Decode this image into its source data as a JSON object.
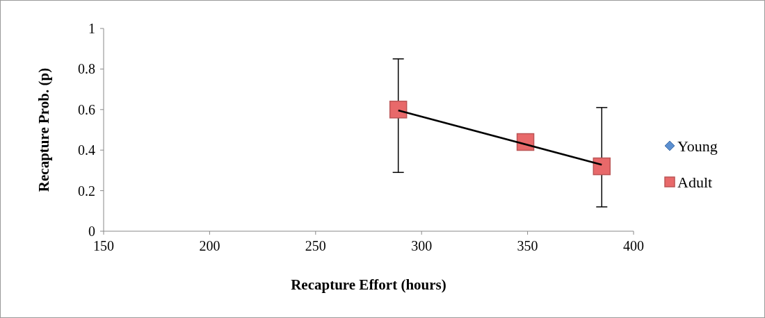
{
  "chart_data": {
    "type": "scatter",
    "xlabel": "Recapture Effort (hours)",
    "ylabel": "Recapture Prob. (p)",
    "xlim": [
      150,
      400
    ],
    "xticks": [
      150,
      200,
      250,
      300,
      350,
      400
    ],
    "ylim": [
      0,
      1
    ],
    "yticks": [
      0,
      0.2,
      0.4,
      0.6,
      0.8,
      1
    ],
    "legend": "right",
    "grid": false,
    "x": [
      289,
      349,
      385
    ],
    "series": [
      {
        "name": "Young",
        "marker": "diamond",
        "color": "#5b8fd0",
        "values": [
          null,
          null,
          null
        ]
      },
      {
        "name": "Adult",
        "marker": "square",
        "color": "#e8696a",
        "values": [
          0.6,
          0.44,
          0.32
        ],
        "errors": [
          [
            0.29,
            0.85
          ],
          null,
          [
            0.12,
            0.61
          ]
        ]
      },
      {
        "type": "line",
        "color": "#000000",
        "marker": "none",
        "x": [
          289,
          385
        ],
        "values": [
          0.596,
          0.328
        ]
      }
    ]
  }
}
